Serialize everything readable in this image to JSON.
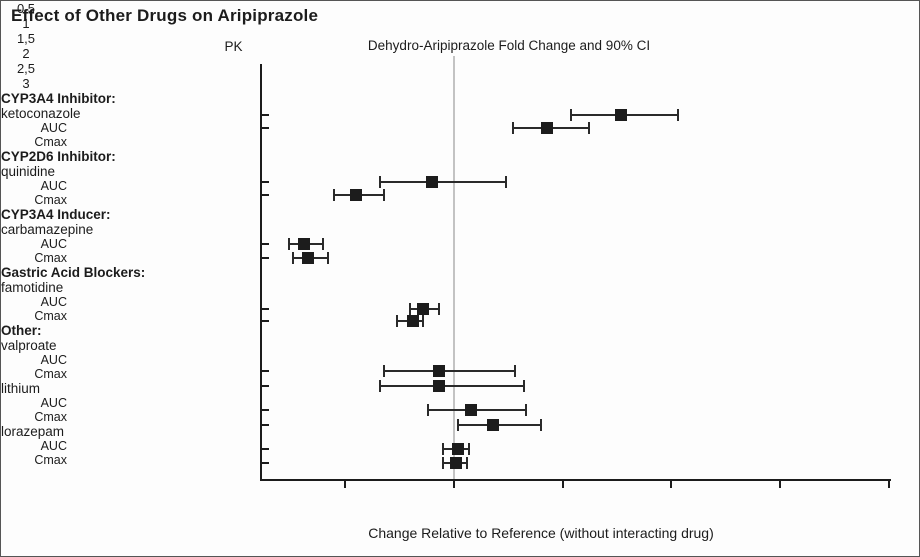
{
  "chart_data": {
    "type": "scatter",
    "subtype": "forest-plot-with-error-bars",
    "title": "Effect of Other Drugs on Aripiprazole",
    "pk_column_label": "PK",
    "subtitle": "Dehydro-Aripiprazole Fold Change and 90% CI",
    "xlabel": "Change Relative to Reference (without interacting drug)",
    "x_domain": [
      0.11,
      3.0
    ],
    "reference_line_x": 1,
    "grid": "off (single vertical reference line at x=1)",
    "legend": "none",
    "x_ticks": [
      {
        "value": 0.5,
        "label": "0,5"
      },
      {
        "value": 1.0,
        "label": "1"
      },
      {
        "value": 1.5,
        "label": "1,5"
      },
      {
        "value": 2.0,
        "label": "2"
      },
      {
        "value": 2.5,
        "label": "2,5"
      },
      {
        "value": 3.0,
        "label": "3"
      }
    ],
    "groups": [
      {
        "header": "CYP3A4 Inhibitor:",
        "drug": "ketoconazole",
        "rows": [
          {
            "pk": "AUC",
            "value": 1.77,
            "lo": 1.54,
            "hi": 2.03
          },
          {
            "pk": "Cmax",
            "value": 1.43,
            "lo": 1.27,
            "hi": 1.62
          }
        ]
      },
      {
        "header": "CYP2D6 Inhibitor:",
        "drug": "quinidine",
        "rows": [
          {
            "pk": "AUC",
            "value": 0.9,
            "lo": 0.66,
            "hi": 1.24
          },
          {
            "pk": "Cmax",
            "value": 0.55,
            "lo": 0.45,
            "hi": 0.68
          }
        ]
      },
      {
        "header": "CYP3A4 Inducer:",
        "drug": "carbamazepine",
        "rows": [
          {
            "pk": "AUC",
            "value": 0.31,
            "lo": 0.24,
            "hi": 0.4
          },
          {
            "pk": "Cmax",
            "value": 0.33,
            "lo": 0.26,
            "hi": 0.42
          }
        ]
      },
      {
        "header": "Gastric Acid Blockers:",
        "drug": "famotidine",
        "rows": [
          {
            "pk": "AUC",
            "value": 0.86,
            "lo": 0.8,
            "hi": 0.93
          },
          {
            "pk": "Cmax",
            "value": 0.81,
            "lo": 0.74,
            "hi": 0.86
          }
        ]
      },
      {
        "header": "Other:",
        "drug": "valproate",
        "rows": [
          {
            "pk": "AUC",
            "value": 0.93,
            "lo": 0.68,
            "hi": 1.28
          },
          {
            "pk": "Cmax",
            "value": 0.93,
            "lo": 0.66,
            "hi": 1.32
          }
        ]
      },
      {
        "header": null,
        "drug": "lithium",
        "rows": [
          {
            "pk": "AUC",
            "value": 1.08,
            "lo": 0.88,
            "hi": 1.33
          },
          {
            "pk": "Cmax",
            "value": 1.18,
            "lo": 1.02,
            "hi": 1.4
          }
        ]
      },
      {
        "header": null,
        "drug": "lorazepam",
        "rows": [
          {
            "pk": "AUC",
            "value": 1.02,
            "lo": 0.95,
            "hi": 1.07
          },
          {
            "pk": "Cmax",
            "value": 1.01,
            "lo": 0.95,
            "hi": 1.06
          }
        ]
      }
    ],
    "colors": {
      "marker": "#1c1c1c",
      "error_bar": "#2a2a2a",
      "axis": "#1c1c1c",
      "reference_line": "#c3c3c3",
      "text": "#1c1c1c",
      "background": "#fdfdfd"
    }
  }
}
